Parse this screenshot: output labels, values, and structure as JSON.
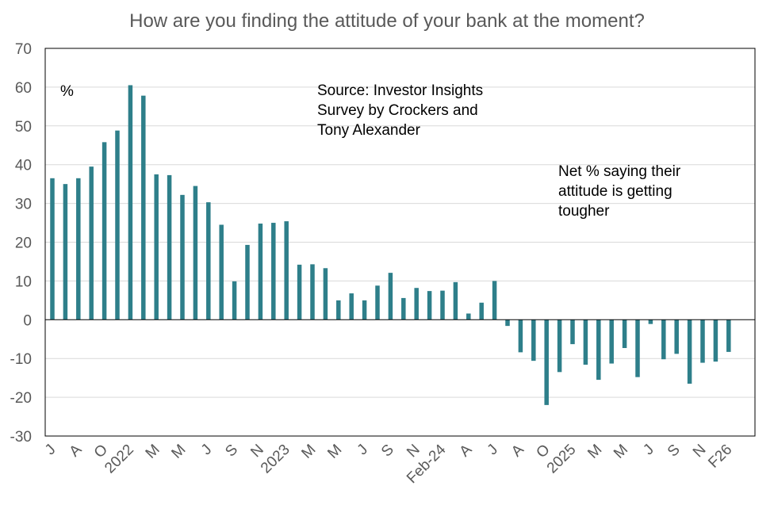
{
  "chart_data": {
    "type": "bar",
    "title": "How are you finding the attitude of your bank at the moment?",
    "unit_label": "%",
    "annotations": {
      "source": [
        "Source: Investor Insights",
        "Survey by Crockers and",
        "Tony Alexander"
      ],
      "note": [
        "Net % saying their",
        "attitude is getting",
        "tougher"
      ]
    },
    "ylim": [
      -30,
      70
    ],
    "yticks": [
      70,
      60,
      50,
      40,
      30,
      20,
      10,
      0,
      -10,
      -20,
      -30
    ],
    "grid": true,
    "bar_color": "#2e7f8a",
    "x_tick_labels": [
      {
        "label": "J",
        "index": 0
      },
      {
        "label": "A",
        "index": 2
      },
      {
        "label": "O",
        "index": 4
      },
      {
        "label": "2022",
        "index": 6
      },
      {
        "label": "M",
        "index": 8
      },
      {
        "label": "M",
        "index": 10
      },
      {
        "label": "J",
        "index": 12
      },
      {
        "label": "S",
        "index": 14
      },
      {
        "label": "N",
        "index": 16
      },
      {
        "label": "2023",
        "index": 18
      },
      {
        "label": "M",
        "index": 20
      },
      {
        "label": "M",
        "index": 22
      },
      {
        "label": "J",
        "index": 24
      },
      {
        "label": "S",
        "index": 26
      },
      {
        "label": "N",
        "index": 28
      },
      {
        "label": "Feb-24",
        "index": 30
      },
      {
        "label": "A",
        "index": 32
      },
      {
        "label": "J",
        "index": 34
      },
      {
        "label": "A",
        "index": 36
      },
      {
        "label": "O",
        "index": 38
      },
      {
        "label": "2025",
        "index": 40
      },
      {
        "label": "M",
        "index": 42
      },
      {
        "label": "M",
        "index": 44
      },
      {
        "label": "J",
        "index": 46
      },
      {
        "label": "S",
        "index": 48
      },
      {
        "label": "N",
        "index": 50
      },
      {
        "label": "F26",
        "index": 52
      }
    ],
    "values": [
      36.5,
      35,
      36.5,
      39.5,
      45.8,
      48.8,
      60.5,
      57.8,
      37.5,
      37.3,
      32.2,
      34.5,
      30.3,
      24.5,
      9.9,
      19.3,
      24.8,
      25,
      25.4,
      14.2,
      14.3,
      13.3,
      5,
      6.8,
      5,
      8.8,
      12.1,
      5.6,
      8.2,
      7.4,
      7.5,
      9.7,
      1.6,
      4.4,
      10,
      -1.6,
      -8.4,
      -10.6,
      -22,
      -13.5,
      -6.3,
      -11.6,
      -15.5,
      -11.3,
      -7.3,
      -14.8,
      -1.1,
      -10.2,
      -8.8,
      -16.5,
      -11.1,
      -10.8,
      -8.3
    ]
  }
}
